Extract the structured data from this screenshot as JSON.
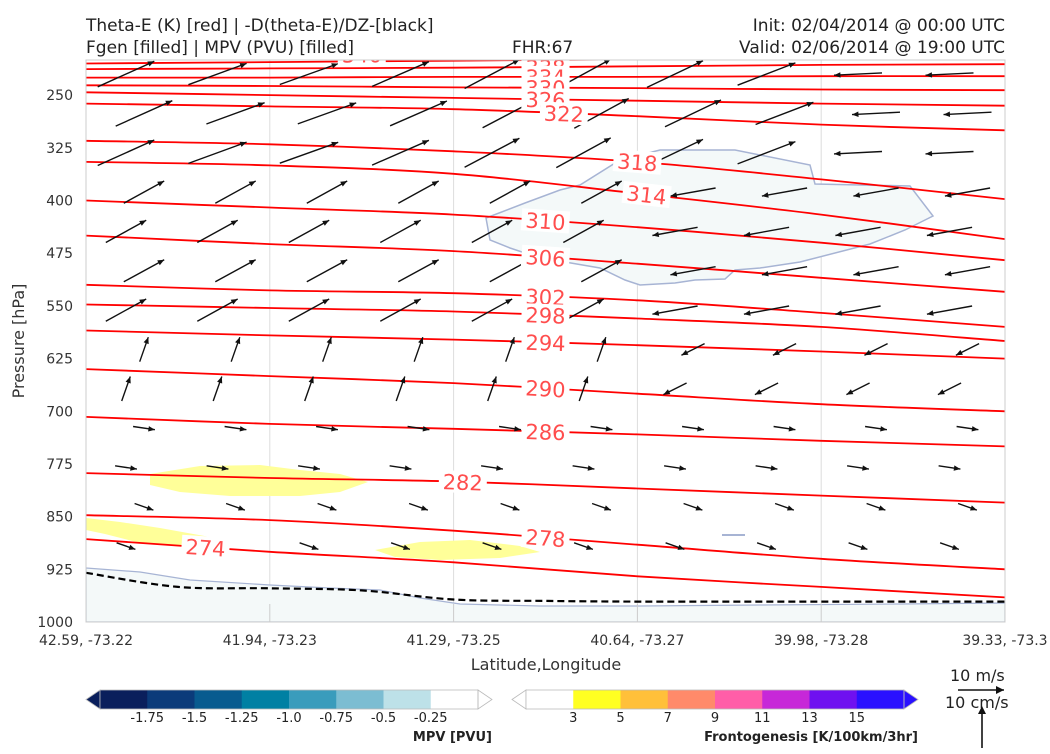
{
  "header": {
    "line1_left": "Theta-E (K) [red] | -D(theta-E)/DZ-[black]",
    "line2_left": "Fgen [filled] | MPV (PVU) [filled]",
    "fhr": "FHR:67",
    "init": "Init: 02/04/2014 @ 00:00 UTC",
    "valid": "Valid: 02/06/2014 @ 19:00 UTC"
  },
  "colors": {
    "theta_e": "#ff0000",
    "theta_e_label": "#ff4d4d",
    "mpv_fill": "#f4f9f9",
    "mpv_outline": "#a7b4d4",
    "fgen_fill": "#ffff99",
    "wind_arrow": "#111111",
    "dthetae_dz": "#000000"
  },
  "chart_data": {
    "type": "cross-section",
    "xlabel": "Latitude,Longitude",
    "ylabel": "Pressure [hPa]",
    "x_ticks": [
      "42.59, -73.22",
      "41.94, -73.23",
      "41.29, -73.25",
      "40.64, -73.27",
      "39.98, -73.28",
      "39.33, -73.3"
    ],
    "y_ticks": [
      250,
      325,
      400,
      475,
      550,
      625,
      700,
      775,
      850,
      925,
      1000
    ],
    "ylim": [
      1000,
      200
    ],
    "y_inverted": true,
    "theta_e_contour_labels": [
      "346",
      "342",
      "338",
      "334",
      "330",
      "326",
      "322",
      "318",
      "314",
      "310",
      "306",
      "302",
      "298",
      "294",
      "290",
      "286",
      "282",
      "278",
      "274"
    ],
    "theta_e_isentropes": [
      {
        "value": 346,
        "points": [
          [
            0,
            195
          ],
          [
            1,
            193
          ],
          [
            2,
            191
          ],
          [
            3,
            190
          ],
          [
            4,
            189
          ],
          [
            5,
            188
          ]
        ]
      },
      {
        "value": 342,
        "points": [
          [
            0,
            205
          ],
          [
            1,
            203
          ],
          [
            2,
            201
          ],
          [
            3,
            199
          ],
          [
            4,
            197
          ],
          [
            5,
            196
          ]
        ]
      },
      {
        "value": 338,
        "points": [
          [
            0,
            213
          ],
          [
            1,
            212
          ],
          [
            2,
            211
          ],
          [
            3,
            209
          ],
          [
            4,
            207
          ],
          [
            5,
            206
          ]
        ]
      },
      {
        "value": 334,
        "points": [
          [
            0,
            225
          ],
          [
            1,
            225
          ],
          [
            2,
            224
          ],
          [
            3,
            224
          ],
          [
            4,
            223
          ],
          [
            5,
            223
          ]
        ]
      },
      {
        "value": 330,
        "points": [
          [
            0,
            236
          ],
          [
            1,
            237
          ],
          [
            2,
            239
          ],
          [
            3,
            240
          ],
          [
            4,
            242
          ],
          [
            5,
            243
          ]
        ]
      },
      {
        "value": 326,
        "points": [
          [
            0,
            246
          ],
          [
            1,
            250
          ],
          [
            2,
            254
          ],
          [
            3,
            258
          ],
          [
            4,
            262
          ],
          [
            5,
            265
          ]
        ]
      },
      {
        "value": 322,
        "points": [
          [
            0,
            262
          ],
          [
            1,
            266
          ],
          [
            2,
            270
          ],
          [
            3,
            280
          ],
          [
            4,
            292
          ],
          [
            5,
            300
          ]
        ]
      },
      {
        "value": 318,
        "points": [
          [
            0,
            315
          ],
          [
            1,
            320
          ],
          [
            2,
            330
          ],
          [
            3,
            345
          ],
          [
            4,
            370
          ],
          [
            5,
            398
          ]
        ]
      },
      {
        "value": 314,
        "points": [
          [
            0,
            345
          ],
          [
            1,
            350
          ],
          [
            2,
            362
          ],
          [
            3,
            390
          ],
          [
            4,
            420
          ],
          [
            5,
            455
          ]
        ]
      },
      {
        "value": 310,
        "points": [
          [
            0,
            400
          ],
          [
            1,
            410
          ],
          [
            2,
            420
          ],
          [
            3,
            438
          ],
          [
            4,
            460
          ],
          [
            5,
            485
          ]
        ]
      },
      {
        "value": 306,
        "points": [
          [
            0,
            450
          ],
          [
            1,
            462
          ],
          [
            2,
            472
          ],
          [
            3,
            490
          ],
          [
            4,
            510
          ],
          [
            5,
            530
          ]
        ]
      },
      {
        "value": 302,
        "points": [
          [
            0,
            520
          ],
          [
            1,
            528
          ],
          [
            2,
            532
          ],
          [
            3,
            542
          ],
          [
            4,
            560
          ],
          [
            5,
            580
          ]
        ]
      },
      {
        "value": 298,
        "points": [
          [
            0,
            548
          ],
          [
            1,
            553
          ],
          [
            2,
            558
          ],
          [
            3,
            568
          ],
          [
            4,
            580
          ],
          [
            5,
            600
          ]
        ]
      },
      {
        "value": 294,
        "points": [
          [
            0,
            585
          ],
          [
            1,
            592
          ],
          [
            2,
            598
          ],
          [
            3,
            606
          ],
          [
            4,
            615
          ],
          [
            5,
            625
          ]
        ]
      },
      {
        "value": 290,
        "points": [
          [
            0,
            640
          ],
          [
            1,
            650
          ],
          [
            2,
            660
          ],
          [
            3,
            675
          ],
          [
            4,
            690
          ],
          [
            5,
            700
          ]
        ]
      },
      {
        "value": 286,
        "points": [
          [
            0,
            708
          ],
          [
            1,
            718
          ],
          [
            2,
            725
          ],
          [
            3,
            733
          ],
          [
            4,
            742
          ],
          [
            5,
            750
          ]
        ]
      },
      {
        "value": 282,
        "points": [
          [
            0,
            788
          ],
          [
            1,
            795
          ],
          [
            2,
            800
          ],
          [
            3,
            810
          ],
          [
            4,
            820
          ],
          [
            5,
            830
          ]
        ]
      },
      {
        "value": 278,
        "points": [
          [
            0,
            848
          ],
          [
            1,
            855
          ],
          [
            2,
            870
          ],
          [
            3,
            890
          ],
          [
            4,
            910
          ],
          [
            5,
            925
          ]
        ]
      },
      {
        "value": 274,
        "points": [
          [
            0,
            882
          ],
          [
            1,
            900
          ],
          [
            2,
            915
          ],
          [
            3,
            935
          ],
          [
            4,
            950
          ],
          [
            5,
            965
          ]
        ]
      }
    ],
    "dthetae_dz_zero_line": [
      [
        0,
        930
      ],
      [
        0.5,
        950
      ],
      [
        1.0,
        952
      ],
      [
        1.5,
        955
      ],
      [
        2.0,
        968
      ],
      [
        2.5,
        970
      ],
      [
        3.0,
        971
      ],
      [
        3.5,
        971
      ],
      [
        4.0,
        971
      ],
      [
        4.5,
        971
      ],
      [
        5.0,
        971
      ]
    ],
    "mpv_legend": {
      "label": "MPV [PVU]",
      "ticks": [
        "-1.75",
        "-1.5",
        "-1.25",
        "-1.0",
        "-0.75",
        "-0.5",
        "-0.25"
      ],
      "colors": [
        "#0a1f5c",
        "#0b3b7a",
        "#085b8f",
        "#0080a3",
        "#3a9cbc",
        "#7cbdd2",
        "#bde1e8",
        "#ffffff"
      ]
    },
    "fgen_legend": {
      "label": "Frontogenesis [K/100km/3hr]",
      "ticks": [
        "3",
        "5",
        "7",
        "9",
        "11",
        "13",
        "15"
      ],
      "colors": [
        "#ffffff",
        "#ffff22",
        "#ffc03a",
        "#ff8a6a",
        "#ff5ea8",
        "#c728d8",
        "#6f10f0",
        "#2a10ff"
      ]
    },
    "wind_reference": {
      "horizontal": "10 m/s",
      "vertical": "10 cm/s"
    }
  }
}
